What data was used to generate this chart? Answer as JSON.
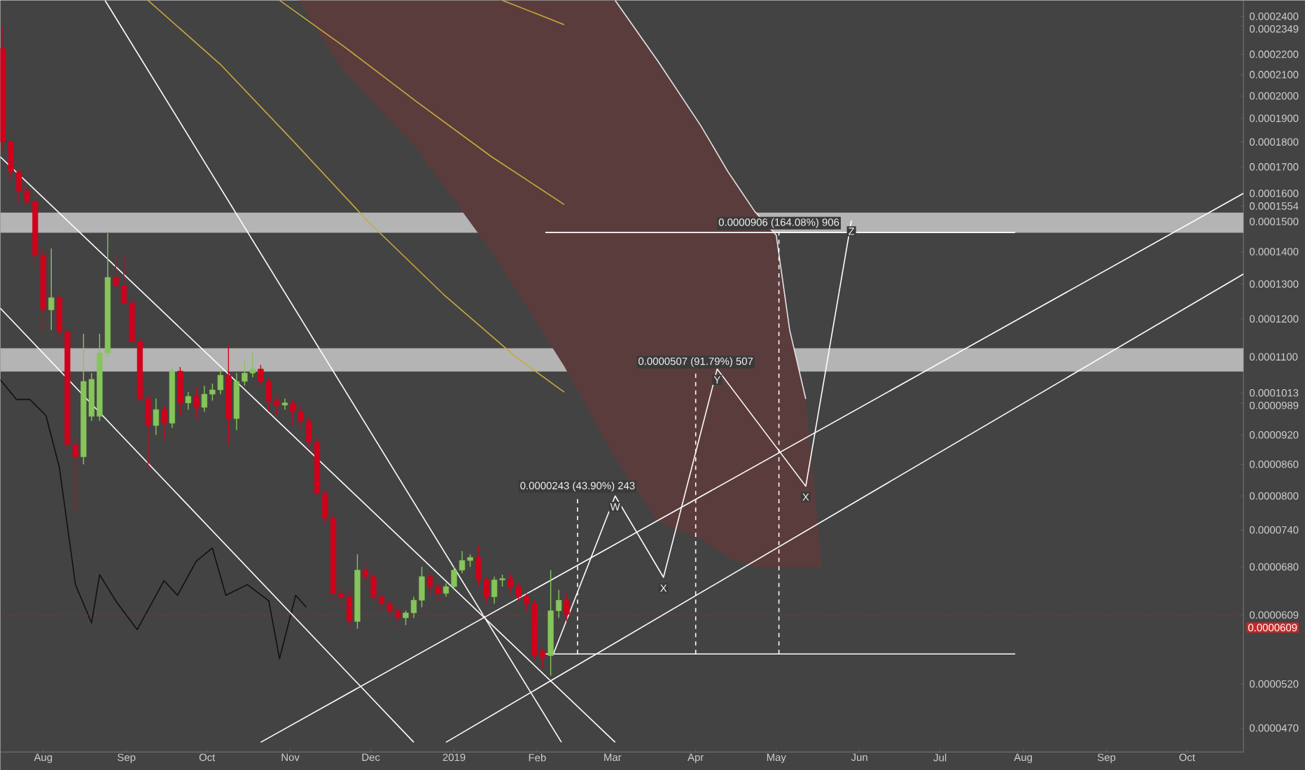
{
  "chart_data": {
    "type": "candlestick",
    "log": "y",
    "xlim": [
      "2018-07-16",
      "2019-10-22"
    ],
    "ylim": [
      4.45e-05,
      0.000249
    ],
    "xticks": [
      {
        "value": "2018-08-01",
        "label": "Aug"
      },
      {
        "value": "2018-09-01",
        "label": "Sep"
      },
      {
        "value": "2018-10-01",
        "label": "Oct"
      },
      {
        "value": "2018-11-01",
        "label": "Nov"
      },
      {
        "value": "2018-12-01",
        "label": "Dec"
      },
      {
        "value": "2019-01-01",
        "label": "2019"
      },
      {
        "value": "2019-02-01",
        "label": "Feb"
      },
      {
        "value": "2019-03-01",
        "label": "Mar"
      },
      {
        "value": "2019-04-01",
        "label": "Apr"
      },
      {
        "value": "2019-05-01",
        "label": "May"
      },
      {
        "value": "2019-06-01",
        "label": "Jun"
      },
      {
        "value": "2019-07-01",
        "label": "Jul"
      },
      {
        "value": "2019-08-01",
        "label": "Aug"
      },
      {
        "value": "2019-09-01",
        "label": "Sep"
      },
      {
        "value": "2019-10-01",
        "label": "Oct"
      }
    ],
    "yticks": [
      {
        "value": 4.7e-05,
        "label": "0.0000470"
      },
      {
        "value": 5.2e-05,
        "label": "0.0000520"
      },
      {
        "value": 6.09e-05,
        "label": "0.0000609"
      },
      {
        "value": 6.8e-05,
        "label": "0.0000680"
      },
      {
        "value": 7.4e-05,
        "label": "0.0000740"
      },
      {
        "value": 8e-05,
        "label": "0.0000800"
      },
      {
        "value": 8.6e-05,
        "label": "0.0000860"
      },
      {
        "value": 9.2e-05,
        "label": "0.0000920"
      },
      {
        "value": 9.89e-05,
        "label": "0.0000989"
      },
      {
        "value": 0.0001013,
        "label": "0.0001013"
      },
      {
        "value": 0.00011,
        "label": "0.0001100"
      },
      {
        "value": 0.00012,
        "label": "0.0001200"
      },
      {
        "value": 0.00013,
        "label": "0.0001300"
      },
      {
        "value": 0.00014,
        "label": "0.0001400"
      },
      {
        "value": 0.00015,
        "label": "0.0001500"
      },
      {
        "value": 0.0001554,
        "label": "0.0001554"
      },
      {
        "value": 0.00016,
        "label": "0.0001600"
      },
      {
        "value": 0.00017,
        "label": "0.0001700"
      },
      {
        "value": 0.00018,
        "label": "0.0001800"
      },
      {
        "value": 0.00019,
        "label": "0.0001900"
      },
      {
        "value": 0.0002,
        "label": "0.0002000"
      },
      {
        "value": 0.00021,
        "label": "0.0002100"
      },
      {
        "value": 0.00022,
        "label": "0.0002200"
      },
      {
        "value": 0.0002349,
        "label": "0.0002349"
      },
      {
        "value": 0.00024,
        "label": "0.0002400"
      }
    ],
    "x": [
      "2018-07-17",
      "2018-07-20",
      "2018-07-23",
      "2018-07-26",
      "2018-07-29",
      "2018-08-01",
      "2018-08-04",
      "2018-08-07",
      "2018-08-10",
      "2018-08-13",
      "2018-08-16",
      "2018-08-19",
      "2018-08-22",
      "2018-08-25",
      "2018-08-28",
      "2018-08-31",
      "2018-09-03",
      "2018-09-06",
      "2018-09-09",
      "2018-09-12",
      "2018-09-15",
      "2018-09-18",
      "2018-09-21",
      "2018-09-24",
      "2018-09-27",
      "2018-09-30",
      "2018-10-03",
      "2018-10-06",
      "2018-10-09",
      "2018-10-12",
      "2018-10-15",
      "2018-10-18",
      "2018-10-21",
      "2018-10-24",
      "2018-10-27",
      "2018-10-30",
      "2018-11-02",
      "2018-11-05",
      "2018-11-08",
      "2018-11-11",
      "2018-11-14",
      "2018-11-17",
      "2018-11-20",
      "2018-11-23",
      "2018-11-26",
      "2018-11-29",
      "2018-12-02",
      "2018-12-05",
      "2018-12-08",
      "2018-12-11",
      "2018-12-14",
      "2018-12-17",
      "2018-12-20",
      "2018-12-23",
      "2018-12-26",
      "2018-12-29",
      "2019-01-01",
      "2019-01-04",
      "2019-01-07",
      "2019-01-10",
      "2019-01-13",
      "2019-01-16",
      "2019-01-19",
      "2019-01-22",
      "2019-01-25",
      "2019-01-28",
      "2019-01-31",
      "2019-02-03",
      "2019-02-06",
      "2019-02-09",
      "2019-02-12"
    ],
    "ohlc": [
      [
        0.000223,
        0.0002349,
        0.000176,
        0.00018
      ],
      [
        0.00018,
        0.000181,
        0.000165,
        0.000168
      ],
      [
        0.000168,
        0.000169,
        0.000156,
        0.000161
      ],
      [
        0.000161,
        0.0001625,
        0.0001555,
        0.000157
      ],
      [
        0.000157,
        0.000158,
        0.000136,
        0.000139
      ],
      [
        0.000139,
        0.000141,
        0.0001165,
        0.0001225
      ],
      [
        0.0001225,
        0.000141,
        0.000117,
        0.000126
      ],
      [
        0.000126,
        0.000127,
        0.000114,
        0.0001165
      ],
      [
        0.0001165,
        0.0001175,
        8.9e-05,
        9e-05
      ],
      [
        9e-05,
        9.1e-05,
        7.7e-05,
        8.75e-05
      ],
      [
        8.75e-05,
        0.000116,
        8.6e-05,
        0.000104
      ],
      [
        9.6e-05,
        0.000106,
        9.5e-05,
        0.0001045
      ],
      [
        9.6e-05,
        0.000116,
        9.5e-05,
        0.000111
      ],
      [
        0.000111,
        0.000146,
        0.00011,
        0.000132
      ],
      [
        0.000132,
        0.0001385,
        0.000129,
        0.0001295
      ],
      [
        0.0001295,
        0.000139,
        0.000124,
        0.0001245
      ],
      [
        0.0001245,
        0.0001255,
        0.0001135,
        0.000114
      ],
      [
        0.000114,
        0.000115,
        9.9e-05,
        0.0001
      ],
      [
        0.0001,
        0.000101,
        8.5e-05,
        9.4e-05
      ],
      [
        9.4e-05,
        0.0001,
        9.2e-05,
        9.75e-05
      ],
      [
        9.75e-05,
        9.85e-05,
        9.1e-05,
        9.45e-05
      ],
      [
        9.45e-05,
        0.0001075,
        9.35e-05,
        0.0001065
      ],
      [
        0.0001065,
        0.0001075,
        9.6e-05,
        9.9e-05
      ],
      [
        9.9e-05,
        0.0001015,
        9.75e-05,
        0.0001005
      ],
      [
        0.0001005,
        0.0001025,
        9.55e-05,
        9.8e-05
      ],
      [
        9.8e-05,
        0.000103,
        9.7e-05,
        0.000101
      ],
      [
        0.000101,
        0.0001035,
        9.95e-05,
        0.000102
      ],
      [
        0.000102,
        0.000107,
        0.000101,
        0.0001055
      ],
      [
        0.0001055,
        0.000113,
        9e-05,
        9.55e-05
      ],
      [
        9.55e-05,
        0.000106,
        9.3e-05,
        0.000104
      ],
      [
        0.000104,
        0.000109,
        0.000103,
        0.000106
      ],
      [
        0.000106,
        0.000111,
        0.000105,
        0.000107
      ],
      [
        0.000107,
        0.000108,
        0.000103,
        0.000104
      ],
      [
        0.000104,
        0.000105,
        9.7e-05,
        9.95e-05
      ],
      [
        9.95e-05,
        0.0001005,
        9.6e-05,
        9.85e-05
      ],
      [
        9.85e-05,
        0.0001,
        9.75e-05,
        9.9e-05
      ],
      [
        9.9e-05,
        0.0001,
        9.4e-05,
        9.7e-05
      ],
      [
        9.7e-05,
        9.85e-05,
        9.35e-05,
        9.5e-05
      ],
      [
        9.5e-05,
        9.6e-05,
        8.9e-05,
        9.05e-05
      ],
      [
        9.05e-05,
        9.15e-05,
        8e-05,
        8.05e-05
      ],
      [
        8.05e-05,
        8.15e-05,
        7.5e-05,
        7.6e-05
      ],
      [
        7.6e-05,
        7.7e-05,
        6.3e-05,
        6.4e-05
      ],
      [
        6.4e-05,
        6.5e-05,
        6.2e-05,
        6.35e-05
      ],
      [
        6.35e-05,
        6.45e-05,
        5.9e-05,
        6e-05
      ],
      [
        6e-05,
        7e-05,
        5.9e-05,
        6.75e-05
      ],
      [
        6.75e-05,
        6.85e-05,
        6.55e-05,
        6.65e-05
      ],
      [
        6.65e-05,
        6.7e-05,
        6.25e-05,
        6.35e-05
      ],
      [
        6.35e-05,
        6.4e-05,
        6.15e-05,
        6.25e-05
      ],
      [
        6.25e-05,
        6.3e-05,
        6.05e-05,
        6.15e-05
      ],
      [
        6.15e-05,
        6.2e-05,
        5.95e-05,
        6.05e-05
      ],
      [
        6.05e-05,
        6.15e-05,
        5.95e-05,
        6.12e-05
      ],
      [
        6.12e-05,
        6.35e-05,
        6.05e-05,
        6.3e-05
      ],
      [
        6.3e-05,
        6.8e-05,
        6.2e-05,
        6.65e-05
      ],
      [
        6.65e-05,
        6.7e-05,
        6.4e-05,
        6.5e-05
      ],
      [
        6.5e-05,
        6.55e-05,
        6.3e-05,
        6.4e-05
      ],
      [
        6.4e-05,
        6.55e-05,
        6.35e-05,
        6.5e-05
      ],
      [
        6.5e-05,
        6.8e-05,
        6.45e-05,
        6.75e-05
      ],
      [
        6.75e-05,
        7.05e-05,
        6.7e-05,
        6.9e-05
      ],
      [
        6.9e-05,
        7e-05,
        6.8e-05,
        6.95e-05
      ],
      [
        6.95e-05,
        7.15e-05,
        6.5e-05,
        6.6e-05
      ],
      [
        6.6e-05,
        6.65e-05,
        6.25e-05,
        6.35e-05
      ],
      [
        6.35e-05,
        6.65e-05,
        6.25e-05,
        6.6e-05
      ],
      [
        6.6e-05,
        6.68e-05,
        6.5e-05,
        6.62e-05
      ],
      [
        6.62e-05,
        6.7e-05,
        6.4e-05,
        6.5e-05
      ],
      [
        6.5e-05,
        6.55e-05,
        6.3e-05,
        6.35e-05
      ],
      [
        6.35e-05,
        6.4e-05,
        6.15e-05,
        6.25e-05
      ],
      [
        6.25e-05,
        6.3e-05,
        5.5e-05,
        5.55e-05
      ],
      [
        5.6e-05,
        5.65e-05,
        5.4e-05,
        5.53e-05
      ],
      [
        5.55e-05,
        6.75e-05,
        5.3e-05,
        6.15e-05
      ],
      [
        6.15e-05,
        6.45e-05,
        6.05e-05,
        6.3e-05
      ],
      [
        6.3e-05,
        6.4e-05,
        6e-05,
        6.1e-05
      ]
    ],
    "colors": [
      "#d0021b",
      "#d0021b",
      "#d0021b",
      "#d0021b",
      "#d0021b",
      "#d0021b",
      "#86c55a",
      "#d0021b",
      "#d0021b",
      "#d0021b",
      "#86c55a",
      "#86c55a",
      "#86c55a",
      "#86c55a",
      "#d0021b",
      "#d0021b",
      "#d0021b",
      "#d0021b",
      "#d0021b",
      "#86c55a",
      "#d0021b",
      "#86c55a",
      "#d0021b",
      "#86c55a",
      "#d0021b",
      "#86c55a",
      "#86c55a",
      "#86c55a",
      "#d0021b",
      "#86c55a",
      "#86c55a",
      "#86c55a",
      "#d0021b",
      "#d0021b",
      "#d0021b",
      "#86c55a",
      "#d0021b",
      "#d0021b",
      "#d0021b",
      "#d0021b",
      "#d0021b",
      "#d0021b",
      "#d0021b",
      "#d0021b",
      "#86c55a",
      "#d0021b",
      "#d0021b",
      "#d0021b",
      "#d0021b",
      "#d0021b",
      "#86c55a",
      "#86c55a",
      "#86c55a",
      "#d0021b",
      "#d0021b",
      "#86c55a",
      "#86c55a",
      "#86c55a",
      "#86c55a",
      "#d0021b",
      "#d0021b",
      "#86c55a",
      "#86c55a",
      "#d0021b",
      "#d0021b",
      "#d0021b",
      "#d0021b",
      "#d0021b",
      "#86c55a",
      "#86c55a",
      "#d0021b"
    ],
    "bands": [
      {
        "axis": "y",
        "from": 0.0001462,
        "to": 0.0001531,
        "color": "#b4b4b4"
      },
      {
        "axis": "y",
        "from": 0.0001064,
        "to": 0.0001122,
        "color": "#b4b4b4"
      }
    ],
    "ref_lines": [
      {
        "axis": "y",
        "value": 6.09e-05,
        "label": "0.0000609",
        "color": "#c62828",
        "line_style": "dotted"
      }
    ],
    "series": [
      {
        "type": "area",
        "color": "#5b3c3c",
        "x": [
          "2018-11-04",
          "2018-11-21",
          "2018-12-18",
          "2019-01-15",
          "2019-02-11",
          "2019-03-02",
          "2019-03-18",
          "2019-04-03",
          "2019-04-13",
          "2019-04-23",
          "2019-05-01",
          "2019-05-06",
          "2019-05-12",
          "2019-05-18"
        ],
        "values": [
          null,
          null,
          null,
          null,
          null,
          null,
          null,
          null,
          null,
          null,
          null,
          null,
          null,
          null
        ],
        "upper": [
          0.000249,
          0.000249,
          0.000249,
          0.000249,
          0.000249,
          0.000249,
          0.0002165,
          0.0001867,
          0.0001682,
          0.0001535,
          0.0001454,
          0.000117,
          9.99e-05,
          6.8e-05
        ],
        "lower": [
          0.000249,
          0.0002115,
          0.0001773,
          0.00014,
          0.0001077,
          8.72e-05,
          7.54e-05,
          7.25e-05,
          6.95e-05,
          6.8e-05,
          6.8e-05,
          6.8e-05,
          6.8e-05,
          6.8e-05
        ]
      },
      {
        "type": "line",
        "color": "#e4e4e4",
        "x": [
          "2019-03-02",
          "2019-03-18",
          "2019-04-03",
          "2019-04-13",
          "2019-04-23",
          "2019-05-01",
          "2019-05-06",
          "2019-05-12"
        ],
        "values": [
          0.000249,
          0.0002165,
          0.0001867,
          0.0001682,
          0.0001535,
          0.0001454,
          0.000117,
          9.99e-05
        ]
      },
      {
        "type": "line",
        "color": "#c9a93c",
        "x": [
          "2018-09-09",
          "2018-10-06",
          "2018-11-02",
          "2018-11-30",
          "2018-12-28",
          "2019-01-24",
          "2019-02-11"
        ],
        "values": [
          0.000249,
          0.000215,
          0.0001805,
          0.00015,
          0.000127,
          0.00011,
          0.0001015
        ]
      },
      {
        "type": "line",
        "color": "#c9a93c",
        "x": [
          "2018-10-28",
          "2018-11-21",
          "2018-12-18",
          "2019-01-15",
          "2019-02-11"
        ],
        "values": [
          0.000249,
          0.000224,
          0.0001975,
          0.000174,
          0.000156
        ]
      },
      {
        "type": "line",
        "color": "#c9a93c",
        "x": [
          "2019-01-19",
          "2019-02-11"
        ],
        "values": [
          0.000249,
          0.0002355
        ]
      },
      {
        "type": "line",
        "color": "#111111",
        "x": [
          "2018-07-16",
          "2018-07-22",
          "2018-07-27",
          "2018-08-02",
          "2018-08-07",
          "2018-08-13",
          "2018-08-19",
          "2018-08-22",
          "2018-08-28",
          "2018-09-05",
          "2018-09-15",
          "2018-09-20",
          "2018-09-27",
          "2018-10-03",
          "2018-10-08",
          "2018-10-16",
          "2018-10-24",
          "2018-10-28",
          "2018-11-03",
          "2018-11-07"
        ],
        "values": [
          0.0001044,
          9.98e-05,
          9.98e-05,
          9.62e-05,
          8.54e-05,
          6.53e-05,
          5.98e-05,
          6.68e-05,
          6.29e-05,
          5.89e-05,
          6.59e-05,
          6.37e-05,
          6.89e-05,
          7.1e-05,
          6.37e-05,
          6.53e-05,
          6.29e-05,
          5.51e-05,
          6.37e-05,
          6.2e-05
        ]
      },
      {
        "type": "line",
        "color": "#ffffff",
        "x": [
          "2018-07-16",
          "2019-03-02"
        ],
        "values": [
          0.000174,
          4.55e-05
        ]
      },
      {
        "type": "line",
        "color": "#ffffff",
        "x": [
          "2018-07-16",
          "2018-12-17"
        ],
        "values": [
          0.000123,
          4.55e-05
        ]
      },
      {
        "type": "line",
        "color": "#ffffff",
        "x": [
          "2018-08-24",
          "2019-02-10"
        ],
        "values": [
          0.000249,
          4.55e-05
        ]
      },
      {
        "type": "line",
        "color": "#ffffff",
        "x": [
          "2018-10-21",
          "2019-10-22"
        ],
        "values": [
          4.55e-05,
          0.00016
        ]
      },
      {
        "type": "line",
        "color": "#ffffff",
        "x": [
          "2018-12-29",
          "2019-10-22"
        ],
        "values": [
          4.55e-05,
          0.000133
        ]
      },
      {
        "type": "line",
        "color": "#ffffff",
        "x": [
          "2019-02-04",
          "2019-07-29"
        ],
        "values": [
          5.57e-05,
          5.57e-05
        ]
      },
      {
        "type": "line",
        "color": "#ffffff",
        "x": [
          "2019-02-04",
          "2019-07-29"
        ],
        "values": [
          0.0001463,
          0.0001463
        ]
      },
      {
        "type": "line",
        "color": "#ffffff",
        "line_style": "dashed",
        "x": [
          "2019-02-16",
          "2019-02-16"
        ],
        "values": [
          5.57e-05,
          8e-05
        ]
      },
      {
        "type": "line",
        "color": "#ffffff",
        "line_style": "dashed",
        "x": [
          "2019-04-01",
          "2019-04-01"
        ],
        "values": [
          5.57e-05,
          0.0001064
        ]
      },
      {
        "type": "line",
        "color": "#ffffff",
        "line_style": "dashed",
        "x": [
          "2019-05-02",
          "2019-05-02"
        ],
        "values": [
          5.57e-05,
          0.0001463
        ]
      },
      {
        "type": "line",
        "color": "#ffffff",
        "x": [
          "2019-02-07",
          "2019-03-02",
          "2019-03-20",
          "2019-04-09",
          "2019-05-12",
          "2019-05-29"
        ],
        "values": [
          5.57e-05,
          8e-05,
          6.64e-05,
          0.000107,
          8.18e-05,
          0.0001504
        ]
      }
    ],
    "annotations": [
      {
        "text": "0.0000243 (43.90%) 243",
        "x": "2019-02-16",
        "y": 8e-05
      },
      {
        "text": "0.0000507 (91.79%) 507",
        "x": "2019-04-01",
        "y": 0.0001064
      },
      {
        "text": "0.0000906 (164.08%) 906",
        "x": "2019-05-02",
        "y": 0.0001463
      },
      {
        "text": "W",
        "x": "2019-03-02",
        "y": 8e-05
      },
      {
        "text": "X",
        "x": "2019-03-20",
        "y": 6.64e-05
      },
      {
        "text": "Y",
        "x": "2019-04-09",
        "y": 0.000107
      },
      {
        "text": "X",
        "x": "2019-05-12",
        "y": 8.18e-05
      },
      {
        "text": "Z",
        "x": "2019-05-29",
        "y": 0.0001504
      }
    ]
  }
}
